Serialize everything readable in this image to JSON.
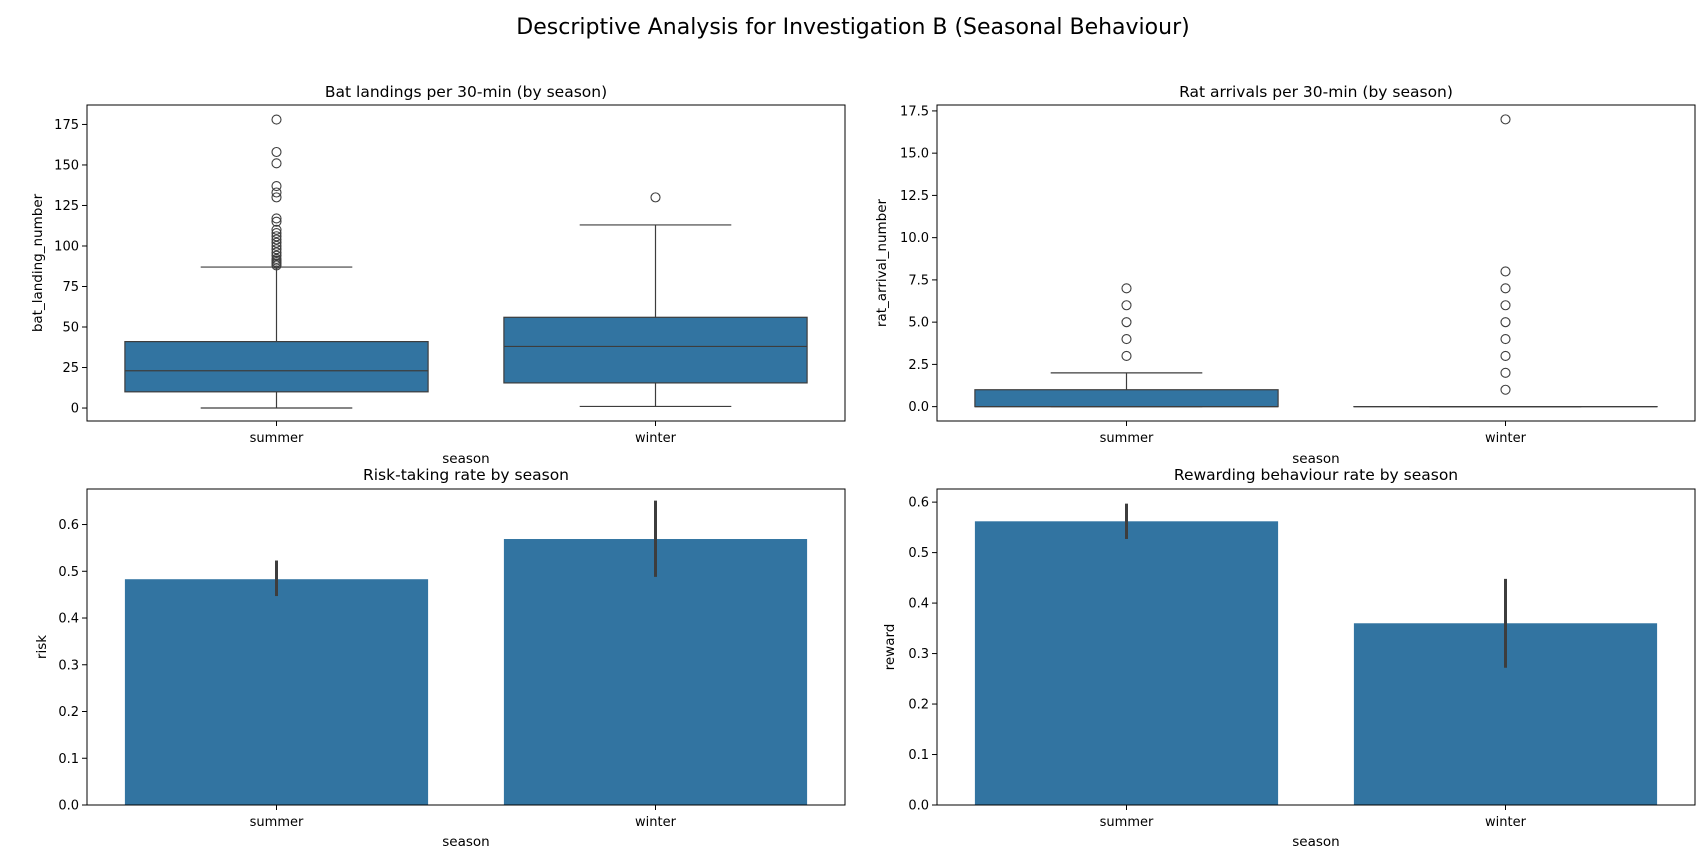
{
  "figure": {
    "title": "Descriptive Analysis for Investigation B (Seasonal Behaviour)"
  },
  "colors": {
    "box_fill": "#3274a1",
    "bar_fill": "#3274a1",
    "line": "#3d3d3d",
    "errbar": "#3d3d3d"
  },
  "chart_data": [
    {
      "id": "bat",
      "type": "box",
      "title": "Bat landings per 30-min (by season)",
      "xlabel": "season",
      "ylabel": "bat_landing_number",
      "categories": [
        "summer",
        "winter"
      ],
      "ylim": [
        -8,
        187
      ],
      "yticks": [
        0,
        25,
        50,
        75,
        100,
        125,
        150,
        175
      ],
      "ytick_labels": [
        "0",
        "25",
        "50",
        "75",
        "100",
        "125",
        "150",
        "175"
      ],
      "grid": false,
      "boxes": [
        {
          "q1": 10,
          "median": 23,
          "q3": 41,
          "whisker_low": 0,
          "whisker_high": 87,
          "outliers": [
            88,
            89,
            90,
            91,
            92,
            94,
            96,
            98,
            100,
            102,
            104,
            106,
            108,
            110,
            115,
            117,
            130,
            133,
            137,
            151,
            158,
            178
          ]
        },
        {
          "q1": 15.5,
          "median": 38,
          "q3": 56,
          "whisker_low": 1,
          "whisker_high": 113,
          "outliers": [
            130
          ]
        }
      ]
    },
    {
      "id": "rat",
      "type": "box",
      "title": "Rat arrivals per 30-min (by season)",
      "xlabel": "season",
      "ylabel": "rat_arrival_number",
      "categories": [
        "summer",
        "winter"
      ],
      "ylim": [
        -0.85,
        17.85
      ],
      "yticks": [
        0,
        2.5,
        5,
        7.5,
        10,
        12.5,
        15,
        17.5
      ],
      "ytick_labels": [
        "0.0",
        "2.5",
        "5.0",
        "7.5",
        "10.0",
        "12.5",
        "15.0",
        "17.5"
      ],
      "grid": false,
      "boxes": [
        {
          "q1": 0,
          "median": 0,
          "q3": 1,
          "whisker_low": 0,
          "whisker_high": 2,
          "outliers": [
            3,
            4,
            5,
            6,
            7
          ]
        },
        {
          "q1": 0,
          "median": 0,
          "q3": 0,
          "whisker_low": 0,
          "whisker_high": 0,
          "outliers": [
            1,
            2,
            3,
            4,
            5,
            6,
            7,
            8,
            17
          ]
        }
      ]
    },
    {
      "id": "risk",
      "type": "bar",
      "title": "Risk-taking rate by season",
      "xlabel": "season",
      "ylabel": "risk",
      "categories": [
        "summer",
        "winter"
      ],
      "values": [
        0.483,
        0.569
      ],
      "error_low": [
        0.447,
        0.488
      ],
      "error_high": [
        0.523,
        0.651
      ],
      "ylim": [
        0,
        0.676
      ],
      "yticks": [
        0,
        0.1,
        0.2,
        0.3,
        0.4,
        0.5,
        0.6
      ],
      "ytick_labels": [
        "0.0",
        "0.1",
        "0.2",
        "0.3",
        "0.4",
        "0.5",
        "0.6"
      ],
      "grid": false
    },
    {
      "id": "reward",
      "type": "bar",
      "title": "Rewarding behaviour rate by season",
      "xlabel": "season",
      "ylabel": "reward",
      "categories": [
        "summer",
        "winter"
      ],
      "values": [
        0.562,
        0.36
      ],
      "error_low": [
        0.527,
        0.272
      ],
      "error_high": [
        0.597,
        0.448
      ],
      "ylim": [
        0,
        0.626
      ],
      "yticks": [
        0,
        0.1,
        0.2,
        0.3,
        0.4,
        0.5,
        0.6
      ],
      "ytick_labels": [
        "0.0",
        "0.1",
        "0.2",
        "0.3",
        "0.4",
        "0.5",
        "0.6"
      ],
      "grid": false
    }
  ]
}
